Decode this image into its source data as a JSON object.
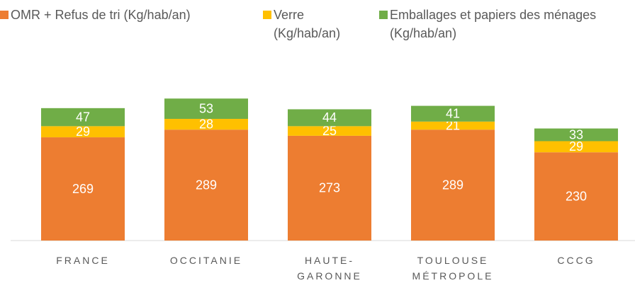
{
  "chart_data": {
    "type": "stacked_bar",
    "categories": [
      "FRANCE",
      "OCCITANIE",
      "HAUTE-GARONNE",
      "TOULOUSE MÉTROPOLE",
      "CCCG"
    ],
    "series": [
      {
        "name": "OMR + Refus de tri (Kg/hab/an)",
        "color": "#ED7D31",
        "values": [
          269,
          289,
          273,
          289,
          230
        ]
      },
      {
        "name": "Verre (Kg/hab/an)",
        "color": "#FFC000",
        "values": [
          29,
          28,
          25,
          21,
          29
        ]
      },
      {
        "name": "Emballages et papiers des ménages (Kg/hab/an)",
        "color": "#70AD47",
        "values": [
          47,
          53,
          44,
          41,
          33
        ]
      }
    ],
    "ylim": [
      0,
      400
    ]
  }
}
